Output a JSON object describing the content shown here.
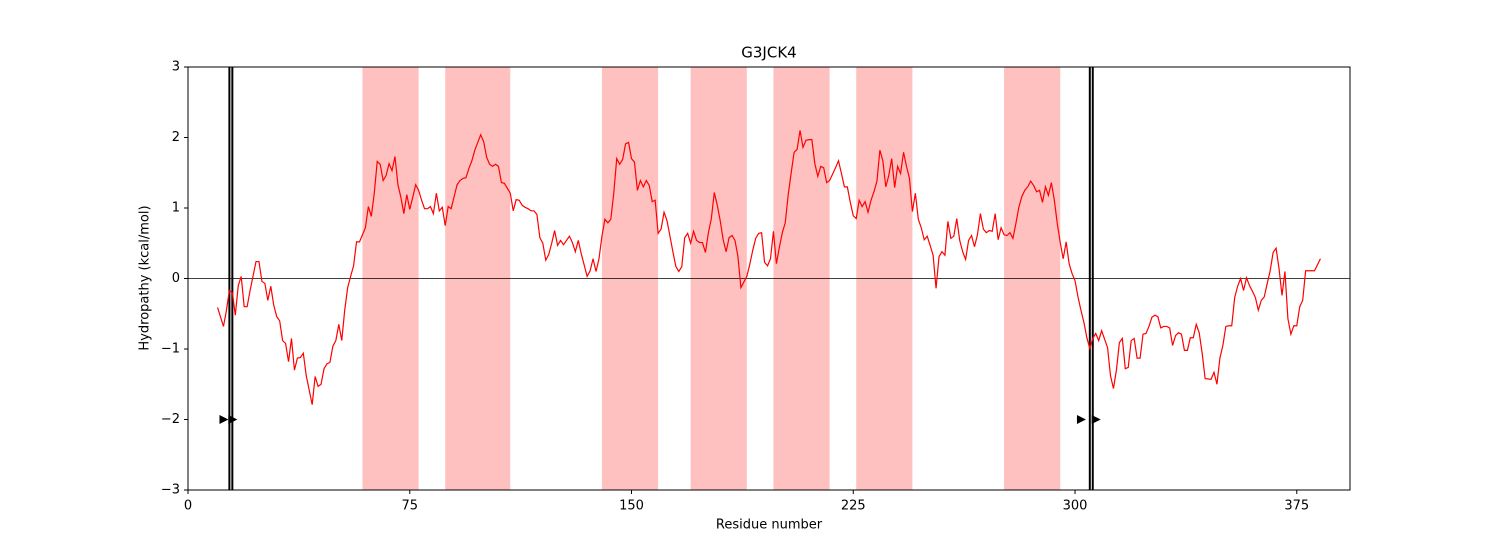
{
  "chart_data": {
    "type": "line",
    "title": "G3JCK4",
    "xlabel": "Residue number",
    "ylabel": "Hydropathy (kcal/mol)",
    "xlim": [
      0,
      393
    ],
    "ylim": [
      -3,
      3
    ],
    "xticks": [
      0,
      75,
      150,
      225,
      300,
      375
    ],
    "yticks": [
      {
        "value": -3,
        "label": "−3"
      },
      {
        "value": -2,
        "label": "−2"
      },
      {
        "value": -1,
        "label": "−1"
      },
      0,
      1,
      2,
      3
    ],
    "hline": 0,
    "regions": [
      [
        59,
        78
      ],
      [
        87,
        109
      ],
      [
        140,
        159
      ],
      [
        170,
        189
      ],
      [
        198,
        217
      ],
      [
        226,
        245
      ],
      [
        276,
        295
      ]
    ],
    "region_color": "#ffc0c0",
    "vlines": [
      14,
      15,
      305,
      306
    ],
    "markers": {
      "x": [
        12,
        15,
        302,
        307
      ],
      "y": [
        -2,
        -2,
        -2,
        -2
      ]
    },
    "series": [
      {
        "name": "Hydropathy",
        "color": "#ff0000",
        "x": [
          10,
          12,
          13,
          14,
          15,
          16,
          17,
          18,
          19,
          20,
          21,
          23,
          24,
          25,
          26,
          27,
          28,
          29,
          30,
          31,
          32,
          33,
          34,
          35,
          36,
          37,
          38,
          39,
          40,
          42,
          43,
          44,
          45,
          46,
          47,
          48,
          49,
          50,
          51,
          52,
          53,
          54,
          55,
          56,
          57,
          58,
          60,
          61,
          62,
          63,
          64,
          65,
          66,
          67,
          68,
          69,
          70,
          71,
          72,
          73,
          74,
          75,
          76,
          77,
          78,
          79,
          80,
          81,
          82,
          83,
          84,
          85,
          86,
          87,
          88,
          89,
          90,
          91,
          92,
          93,
          94,
          95,
          96,
          97,
          99,
          100,
          101,
          102,
          103,
          104,
          105,
          106,
          107,
          109,
          110,
          111,
          112,
          113,
          114,
          115,
          116,
          117,
          118,
          119,
          120,
          121,
          122,
          123,
          124,
          125,
          126,
          127,
          128,
          129,
          130,
          131,
          132,
          133,
          135,
          136,
          137,
          138,
          139,
          140,
          141,
          142,
          143,
          144,
          145,
          146,
          147,
          148,
          149,
          150,
          151,
          152,
          153,
          154,
          155,
          156,
          157,
          158,
          159,
          160,
          161,
          162,
          163,
          164,
          165,
          166,
          167,
          168,
          169,
          170,
          171,
          172,
          173,
          174,
          175,
          176,
          177,
          178,
          179,
          180,
          181,
          182,
          183,
          184,
          185,
          186,
          187,
          189,
          190,
          191,
          192,
          193,
          194,
          195,
          196,
          197,
          198,
          199,
          200,
          201,
          202,
          203,
          204,
          205,
          206,
          207,
          208,
          209,
          210,
          211,
          212,
          213,
          214,
          215,
          216,
          217,
          218,
          219,
          220,
          221,
          222,
          223,
          224,
          225,
          226,
          227,
          228,
          229,
          230,
          231,
          232,
          233,
          234,
          235,
          236,
          237,
          238,
          239,
          240,
          241,
          242,
          243,
          244,
          245,
          246,
          247,
          248,
          249,
          250,
          251,
          252,
          253,
          254,
          255,
          256,
          257,
          258,
          259,
          260,
          261,
          262,
          263,
          264,
          265,
          266,
          267,
          268,
          269,
          270,
          271,
          272,
          273,
          274,
          275,
          276,
          277,
          278,
          279,
          280,
          281,
          282,
          283,
          284,
          285,
          286,
          287,
          288,
          289,
          290,
          291,
          292,
          293,
          294,
          295,
          296,
          297,
          298,
          299,
          300,
          301,
          302,
          303,
          304,
          305,
          306,
          307,
          308,
          309,
          311,
          312,
          313,
          314,
          315,
          316,
          317,
          318,
          319,
          320,
          321,
          322,
          323,
          324,
          325,
          326,
          327,
          328,
          329,
          330,
          331,
          332,
          333,
          334,
          335,
          336,
          337,
          338,
          339,
          340,
          341,
          342,
          343,
          344,
          346,
          347,
          348,
          349,
          350,
          351,
          352,
          353,
          354,
          355,
          356,
          357,
          358,
          359,
          360,
          361,
          362,
          363,
          364,
          365,
          366,
          367,
          368,
          369,
          370,
          371,
          372,
          373,
          374,
          375,
          376,
          377,
          378,
          379,
          380,
          381,
          383
        ],
        "values": [
          -0.41,
          -0.68,
          -0.45,
          -0.17,
          -0.2,
          -0.52,
          -0.1,
          0.03,
          -0.4,
          -0.4,
          -0.17,
          0.24,
          0.24,
          -0.04,
          -0.07,
          -0.31,
          -0.11,
          -0.38,
          -0.54,
          -0.6,
          -0.88,
          -0.92,
          -1.18,
          -0.85,
          -1.3,
          -1.13,
          -1.12,
          -1.06,
          -1.38,
          -1.79,
          -1.39,
          -1.53,
          -1.5,
          -1.28,
          -1.21,
          -1.19,
          -0.96,
          -0.88,
          -0.65,
          -0.88,
          -0.45,
          -0.13,
          0.03,
          0.18,
          0.52,
          0.52,
          0.72,
          1.02,
          0.88,
          1.21,
          1.66,
          1.62,
          1.39,
          1.46,
          1.63,
          1.53,
          1.73,
          1.33,
          1.15,
          0.92,
          1.19,
          0.98,
          1.15,
          1.33,
          1.25,
          1.11,
          0.99,
          0.99,
          1.02,
          0.92,
          1.21,
          0.96,
          1.01,
          0.75,
          1.02,
          0.99,
          1.16,
          1.33,
          1.39,
          1.42,
          1.43,
          1.56,
          1.67,
          1.82,
          2.04,
          1.94,
          1.72,
          1.62,
          1.59,
          1.62,
          1.59,
          1.36,
          1.35,
          1.21,
          0.96,
          1.12,
          1.11,
          1.04,
          1.01,
          0.99,
          0.96,
          0.96,
          0.91,
          0.58,
          0.5,
          0.26,
          0.34,
          0.5,
          0.68,
          0.47,
          0.54,
          0.48,
          0.54,
          0.6,
          0.51,
          0.38,
          0.54,
          0.35,
          0.03,
          0.11,
          0.28,
          0.1,
          0.28,
          0.6,
          0.84,
          0.79,
          0.84,
          1.21,
          1.7,
          1.62,
          1.69,
          1.91,
          1.93,
          1.7,
          1.65,
          1.25,
          1.39,
          1.3,
          1.39,
          1.32,
          1.09,
          1.11,
          0.64,
          0.7,
          0.94,
          0.82,
          0.6,
          0.38,
          0.17,
          0.1,
          0.17,
          0.58,
          0.64,
          0.5,
          0.67,
          0.54,
          0.51,
          0.51,
          0.37,
          0.65,
          0.85,
          1.22,
          1.04,
          0.82,
          0.55,
          0.38,
          0.58,
          0.61,
          0.54,
          0.31,
          -0.13,
          0.03,
          0.2,
          0.4,
          0.57,
          0.64,
          0.65,
          0.23,
          0.18,
          0.28,
          0.67,
          0.21,
          0.44,
          0.65,
          0.79,
          1.19,
          1.5,
          1.79,
          1.83,
          2.1,
          1.86,
          1.96,
          1.97,
          1.97,
          1.63,
          1.45,
          1.59,
          1.57,
          1.36,
          1.39,
          1.48,
          1.57,
          1.67,
          1.49,
          1.3,
          1.3,
          1.08,
          0.89,
          0.85,
          1.11,
          1.02,
          1.09,
          0.94,
          1.11,
          1.23,
          1.38,
          1.82,
          1.67,
          1.3,
          1.46,
          1.7,
          1.29,
          1.59,
          1.49,
          1.79,
          1.59,
          1.42,
          0.95,
          1.21,
          0.84,
          0.72,
          0.55,
          0.6,
          0.47,
          0.33,
          -0.14,
          0.31,
          0.38,
          0.33,
          0.81,
          0.57,
          0.6,
          0.85,
          0.54,
          0.38,
          0.27,
          0.54,
          0.61,
          0.45,
          0.62,
          0.92,
          0.7,
          0.65,
          0.68,
          0.67,
          0.92,
          0.55,
          0.72,
          0.62,
          0.61,
          0.65,
          0.57,
          0.78,
          1.01,
          1.16,
          1.25,
          1.3,
          1.38,
          1.32,
          1.23,
          1.25,
          1.08,
          1.3,
          1.18,
          1.36,
          1.11,
          0.78,
          0.51,
          0.28,
          0.52,
          0.21,
          0.07,
          -0.03,
          -0.26,
          -0.45,
          -0.62,
          -0.84,
          -0.99,
          -0.85,
          -0.78,
          -0.88,
          -0.74,
          -0.98,
          -1.38,
          -1.56,
          -1.3,
          -0.91,
          -0.85,
          -1.28,
          -1.26,
          -0.88,
          -0.85,
          -1.13,
          -1.13,
          -0.79,
          -0.78,
          -0.68,
          -0.55,
          -0.52,
          -0.54,
          -0.7,
          -0.68,
          -0.68,
          -0.7,
          -0.95,
          -0.81,
          -0.77,
          -0.79,
          -1.02,
          -1.02,
          -0.84,
          -0.84,
          -0.65,
          -0.77,
          -1.06,
          -1.42,
          -1.43,
          -1.33,
          -1.5,
          -1.13,
          -0.95,
          -0.68,
          -0.67,
          -0.67,
          -0.27,
          -0.11,
          0,
          -0.17,
          0.01,
          -0.1,
          -0.18,
          -0.27,
          -0.45,
          -0.31,
          -0.26,
          -0.07,
          0.11,
          0.37,
          0.43,
          0.14,
          -0.24,
          0.1,
          -0.57,
          -0.79,
          -0.67,
          -0.67,
          -0.4,
          -0.31,
          0.11,
          0.11,
          0.11,
          0.11,
          0.28
        ]
      }
    ]
  }
}
